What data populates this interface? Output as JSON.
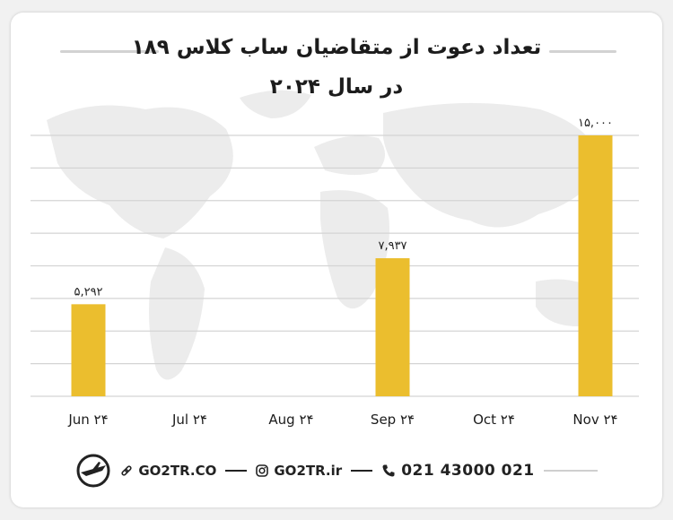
{
  "title_line1": "تعداد دعوت از متقاضیان ساب کلاس ۱۸۹",
  "title_line2": "در سال ۲۰۲۴",
  "chart_data": {
    "type": "bar",
    "categories": [
      "Jun ۲۴",
      "Jul ۲۴",
      "Aug ۲۴",
      "Sep ۲۴",
      "Oct ۲۴",
      "Nov ۲۴"
    ],
    "values": [
      5292,
      0,
      0,
      7937,
      0,
      15000
    ],
    "data_labels": [
      "۵,۲۹۲",
      "",
      "",
      "۷,۹۳۷",
      "",
      "۱۵,۰۰۰"
    ],
    "ylim": [
      0,
      15000
    ],
    "grid": true,
    "bar_color": "#ebbe2e"
  },
  "footer": {
    "website": "GO2TR.CO",
    "instagram": "GO2TR.ir",
    "phone": "021 43000 021"
  },
  "colors": {
    "accent": "#ebbe2e",
    "text": "#1c1c1c"
  }
}
